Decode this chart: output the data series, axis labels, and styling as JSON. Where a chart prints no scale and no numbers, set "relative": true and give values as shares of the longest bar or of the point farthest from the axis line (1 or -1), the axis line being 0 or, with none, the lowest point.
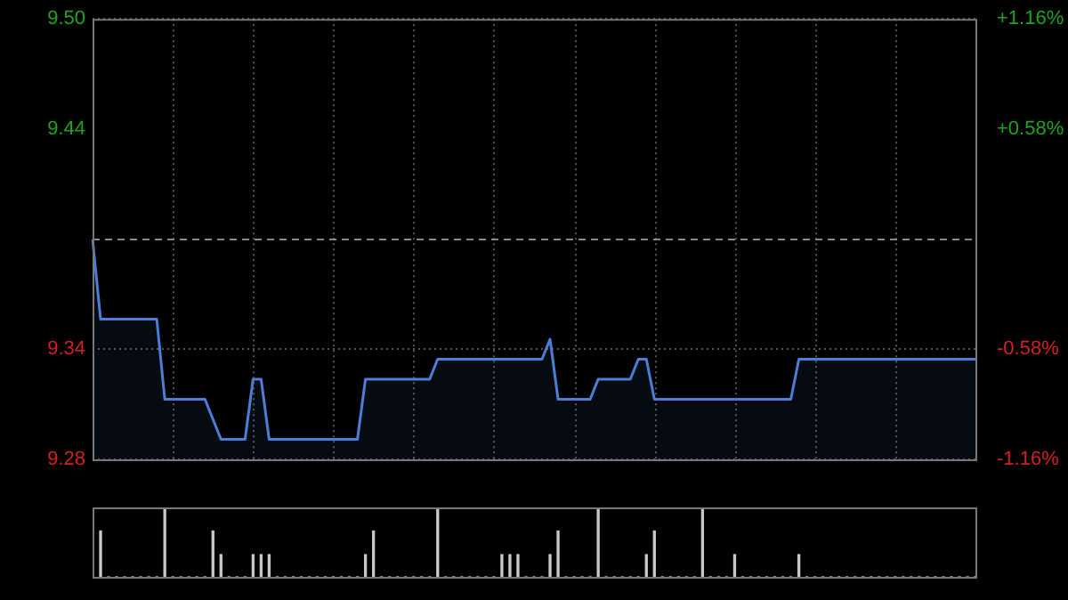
{
  "chart_data": [
    {
      "type": "area",
      "categories": [
        null,
        null,
        null,
        null,
        null,
        null,
        null,
        null,
        null,
        null,
        null,
        null,
        null,
        null,
        null,
        null,
        null,
        null,
        null,
        null,
        null,
        null,
        null,
        null,
        null,
        null,
        null,
        null,
        null,
        null,
        null,
        null,
        null,
        null,
        null,
        null,
        null,
        null,
        null,
        null,
        null,
        null,
        null,
        null,
        null,
        null,
        null,
        null,
        null,
        null,
        null,
        null,
        null,
        null,
        null,
        null,
        null,
        null,
        null,
        null,
        null,
        null,
        null,
        null,
        null,
        null,
        null,
        null,
        null,
        null,
        null,
        null,
        null,
        null,
        null,
        null,
        null,
        null,
        null,
        null,
        null,
        null,
        null,
        null,
        null,
        null,
        null,
        null,
        null,
        null,
        null,
        null,
        null,
        null,
        null,
        null,
        null,
        null,
        null,
        null,
        null,
        null,
        null,
        null,
        null,
        null,
        null,
        null,
        null,
        null,
        null
      ],
      "series": [
        {
          "color": "#4a7fd6",
          "values": [
            9.39,
            9.35,
            9.35,
            9.35,
            9.35,
            9.35,
            9.35,
            9.35,
            9.35,
            9.31,
            9.31,
            9.31,
            9.31,
            9.31,
            9.31,
            9.3,
            9.29,
            9.29,
            9.29,
            9.29,
            9.32,
            9.32,
            9.29,
            9.29,
            9.29,
            9.29,
            9.29,
            9.29,
            9.29,
            9.29,
            9.29,
            9.29,
            9.29,
            9.29,
            9.32,
            9.32,
            9.32,
            9.32,
            9.32,
            9.32,
            9.32,
            9.32,
            9.32,
            9.33,
            9.33,
            9.33,
            9.33,
            9.33,
            9.33,
            9.33,
            9.33,
            9.33,
            9.33,
            9.33,
            9.33,
            9.33,
            9.33,
            9.34,
            9.31,
            9.31,
            9.31,
            9.31,
            9.31,
            9.32,
            9.32,
            9.32,
            9.32,
            9.32,
            9.33,
            9.33,
            9.31,
            9.31,
            9.31,
            9.31,
            9.31,
            9.31,
            9.31,
            9.31,
            9.31,
            9.31,
            9.31,
            9.31,
            9.31,
            9.31,
            9.31,
            9.31,
            9.31,
            9.31,
            9.33,
            9.33,
            9.33,
            9.33,
            9.33,
            9.33,
            9.33,
            9.33,
            9.33,
            9.33,
            9.33,
            9.33,
            9.33,
            9.33,
            9.33,
            9.33,
            9.33,
            9.33,
            9.33,
            9.33,
            9.33,
            9.33,
            9.33
          ]
        }
      ],
      "ylim": [
        9.28,
        9.5
      ],
      "yticks": [
        9.28,
        {
          "value": 9.335,
          "label": "9.34"
        },
        {
          "value": 9.39,
          "label": null
        },
        {
          "value": 9.445,
          "label": "9.44"
        },
        {
          "value": 9.5,
          "label": "9.50"
        }
      ],
      "y2lim": [
        -1.16,
        1.16
      ],
      "y2ticks": [
        {
          "value": -1.16,
          "label": "-1.16%"
        },
        {
          "value": -0.58,
          "label": "-0.58%"
        },
        {
          "value": 0,
          "label": null
        },
        {
          "value": 0.58,
          "label": "+0.58%"
        },
        {
          "value": 1.16,
          "label": "+1.16%"
        }
      ],
      "ref_lines": [
        {
          "axis": "y",
          "value": 9.39,
          "color": "#888888",
          "line_style": "dashed"
        }
      ],
      "grid": true,
      "legend": false,
      "marker": "none",
      "line_style": "solid",
      "tick_labels": "y"
    },
    {
      "type": "bar",
      "relative": true,
      "color": "#c8c8c8",
      "categories": [
        null,
        null,
        null,
        null,
        null,
        null,
        null,
        null,
        null,
        null,
        null,
        null,
        null,
        null,
        null,
        null,
        null,
        null,
        null,
        null,
        null,
        null,
        null,
        null,
        null,
        null,
        null,
        null,
        null,
        null,
        null,
        null,
        null,
        null,
        null,
        null,
        null,
        null,
        null,
        null,
        null,
        null,
        null,
        null,
        null,
        null,
        null,
        null,
        null,
        null,
        null,
        null,
        null,
        null,
        null,
        null,
        null,
        null,
        null,
        null,
        null,
        null,
        null,
        null,
        null,
        null,
        null,
        null,
        null,
        null,
        null,
        null,
        null,
        null,
        null,
        null,
        null,
        null,
        null,
        null,
        null,
        null,
        null,
        null,
        null,
        null,
        null,
        null,
        null,
        null,
        null,
        null,
        null,
        null,
        null,
        null,
        null,
        null,
        null,
        null,
        null,
        null,
        null,
        null,
        null,
        null,
        null,
        null,
        null,
        null,
        null
      ],
      "values": [
        0,
        0.66,
        0,
        0,
        0,
        0,
        0,
        0,
        0,
        1,
        0,
        0,
        0,
        0,
        0,
        0.66,
        0.32,
        0,
        0,
        0,
        0.32,
        0.32,
        0.32,
        0,
        0,
        0,
        0,
        0,
        0,
        0,
        0,
        0,
        0,
        0,
        0.32,
        0.66,
        0,
        0,
        0,
        0,
        0,
        0,
        0,
        1,
        0,
        0,
        0,
        0,
        0,
        0,
        0,
        0.32,
        0.32,
        0.32,
        0,
        0,
        0,
        0.32,
        0.66,
        0,
        0,
        0,
        0,
        1,
        0,
        0,
        0,
        0,
        0,
        0.32,
        0.66,
        0,
        0,
        0,
        0,
        0,
        1,
        0,
        0,
        0,
        0.32,
        0,
        0,
        0,
        0,
        0,
        0,
        0,
        0.32,
        0,
        0,
        0,
        0,
        0,
        0,
        0,
        0,
        0,
        0,
        0,
        0,
        0,
        0,
        0,
        0,
        0,
        0,
        0,
        0,
        0,
        0
      ],
      "grid": false,
      "legend": false,
      "tick_labels": false
    }
  ]
}
